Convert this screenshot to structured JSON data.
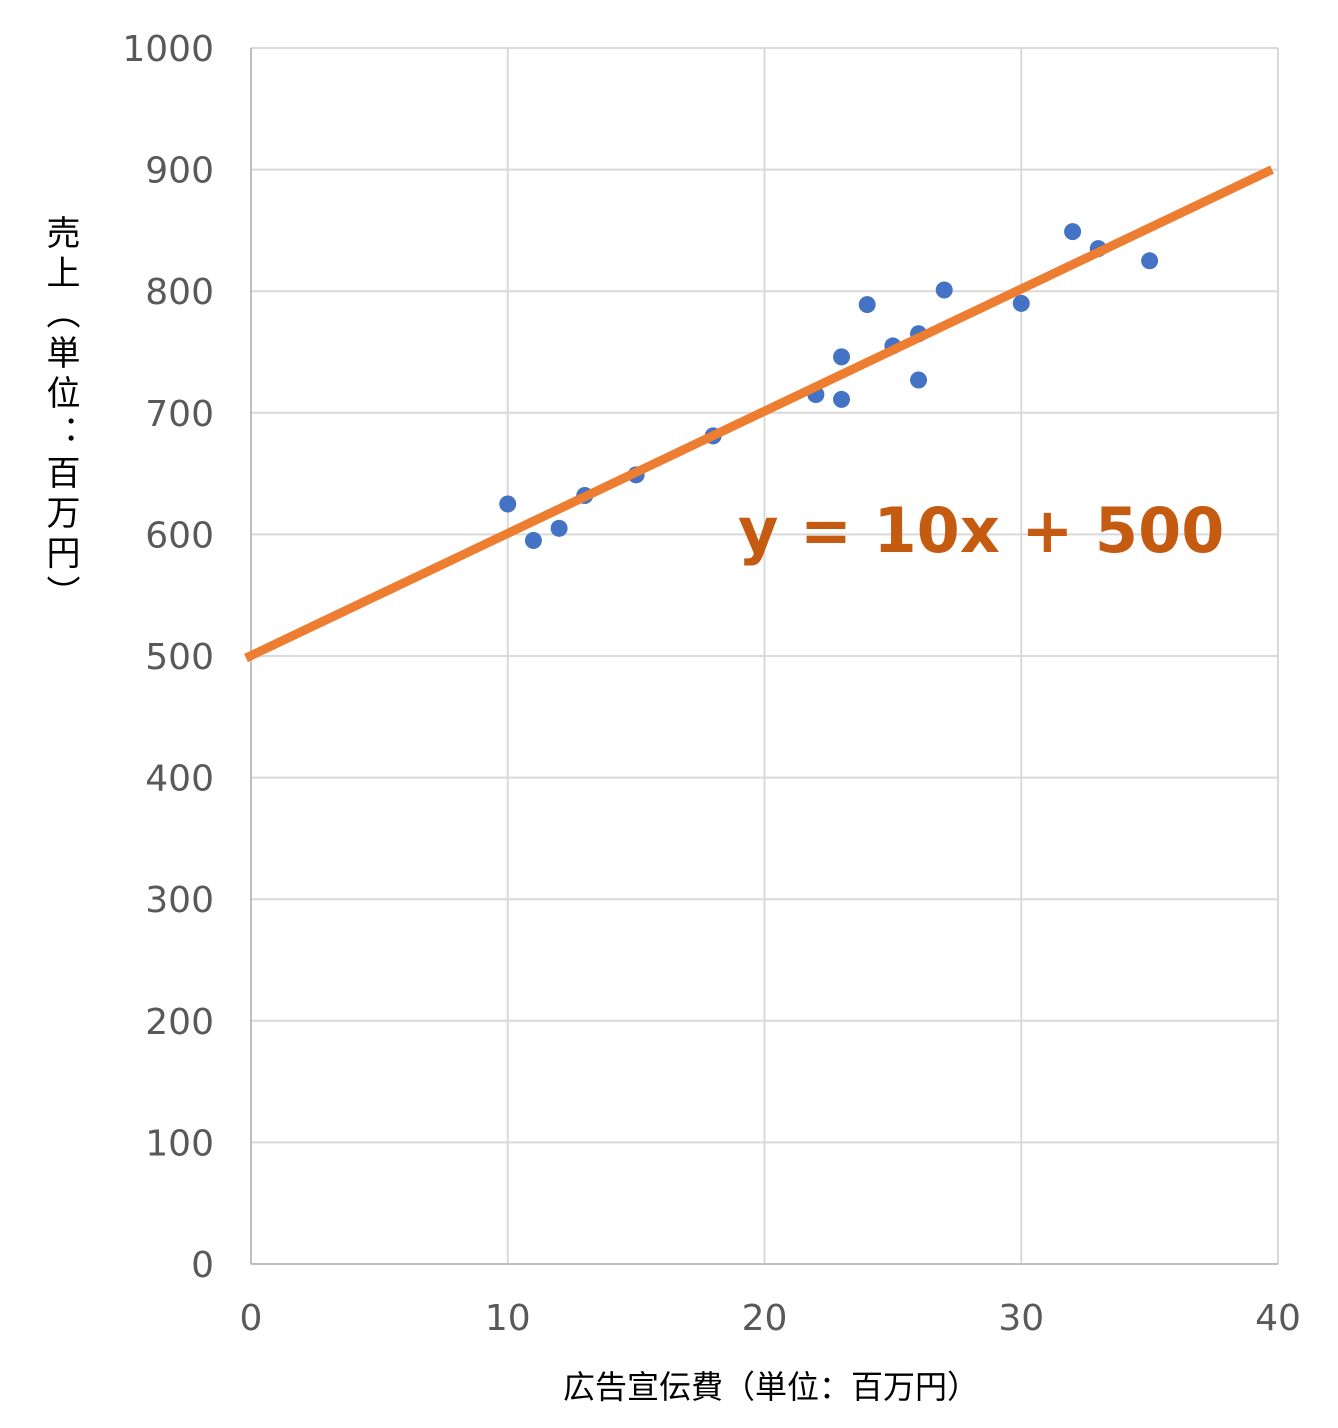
{
  "chart_data": {
    "type": "scatter",
    "xlabel": "広告宣伝費（単位：百万円）",
    "ylabel": "売上（単位：百万円）",
    "xlim": [
      0,
      40
    ],
    "ylim": [
      0,
      1000
    ],
    "x_ticks": [
      0,
      10,
      20,
      30,
      40
    ],
    "y_ticks": [
      0,
      100,
      200,
      300,
      400,
      500,
      600,
      700,
      800,
      900,
      1000
    ],
    "grid": true,
    "legend": "none",
    "series": [
      {
        "type": "scatter",
        "color": "#4472c4",
        "points": [
          {
            "x": 10,
            "y": 625
          },
          {
            "x": 11,
            "y": 595
          },
          {
            "x": 12,
            "y": 605
          },
          {
            "x": 13,
            "y": 632
          },
          {
            "x": 15,
            "y": 649
          },
          {
            "x": 18,
            "y": 681
          },
          {
            "x": 22,
            "y": 715
          },
          {
            "x": 23,
            "y": 746
          },
          {
            "x": 23,
            "y": 711
          },
          {
            "x": 24,
            "y": 789
          },
          {
            "x": 25,
            "y": 755
          },
          {
            "x": 26,
            "y": 765
          },
          {
            "x": 26,
            "y": 727
          },
          {
            "x": 27,
            "y": 801
          },
          {
            "x": 30,
            "y": 790
          },
          {
            "x": 32,
            "y": 849
          },
          {
            "x": 33,
            "y": 835
          },
          {
            "x": 35,
            "y": 825
          }
        ]
      },
      {
        "type": "line",
        "color": "#ed7d31",
        "slope": 10,
        "intercept": 500,
        "x_range": [
          0,
          40
        ]
      }
    ],
    "annotation": {
      "text": "y = 10x + 500",
      "color": "#c55a11"
    }
  }
}
